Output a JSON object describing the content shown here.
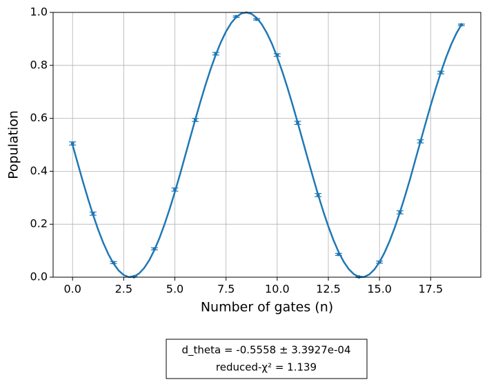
{
  "chart_data": {
    "type": "scatter",
    "xlabel": "Number of gates (n)",
    "ylabel": "Population",
    "annotations": [
      "d_theta =  -0.5558 ±  3.3927e-04",
      "reduced-χ² =  1.139"
    ],
    "xlim": [
      -0.95,
      19.95
    ],
    "ylim": [
      0,
      1
    ],
    "xticks": [
      {
        "value": 0,
        "label": "0.0"
      },
      2.5,
      {
        "value": 5,
        "label": "5.0"
      },
      7.5,
      {
        "value": 10,
        "label": "10.0"
      },
      12.5,
      {
        "value": 15,
        "label": "15.0"
      },
      17.5
    ],
    "yticks": [
      {
        "value": 0,
        "label": "0.0"
      },
      0.2,
      0.4,
      0.6,
      0.8,
      {
        "value": 1,
        "label": "1.0"
      }
    ],
    "grid": true,
    "series": [
      {
        "type": "errorbar",
        "color": "#1f77b4",
        "x": [
          0,
          1,
          2,
          3,
          4,
          5,
          6,
          7,
          8,
          9,
          10,
          11,
          12,
          13,
          14,
          15,
          16,
          17,
          18,
          19
        ],
        "values": [
          0.505,
          0.24,
          0.055,
          0.002,
          0.107,
          0.331,
          0.594,
          0.844,
          0.984,
          0.974,
          0.839,
          0.583,
          0.31,
          0.086,
          0.001,
          0.057,
          0.245,
          0.513,
          0.773,
          0.953
        ],
        "errors": [
          0.006,
          0.006,
          0.004,
          0.002,
          0.004,
          0.006,
          0.006,
          0.005,
          0.003,
          0.003,
          0.005,
          0.006,
          0.006,
          0.004,
          0.002,
          0.004,
          0.006,
          0.006,
          0.005,
          0.003
        ]
      },
      {
        "type": "line",
        "color": "#1f77b4",
        "x": [
          0,
          0.25,
          0.5,
          0.75,
          1,
          1.25,
          1.5,
          1.75,
          2,
          2.25,
          2.5,
          2.75,
          3,
          3.25,
          3.5,
          3.75,
          4,
          4.25,
          4.5,
          4.75,
          5,
          5.25,
          5.5,
          5.75,
          6,
          6.25,
          6.5,
          6.75,
          7,
          7.25,
          7.5,
          7.75,
          8,
          8.25,
          8.5,
          8.75,
          9,
          9.25,
          9.5,
          9.75,
          10,
          10.25,
          10.5,
          10.75,
          11,
          11.25,
          11.5,
          11.75,
          12,
          12.25,
          12.5,
          12.75,
          13,
          13.25,
          13.5,
          13.75,
          14,
          14.25,
          14.5,
          14.75,
          15,
          15.25,
          15.5,
          15.75,
          16,
          16.25,
          16.5,
          16.75,
          17,
          17.25,
          17.5,
          17.75,
          18,
          18.25,
          18.5,
          18.75,
          19
        ],
        "values": [
          0.5,
          0.4308,
          0.3628,
          0.2976,
          0.2361,
          0.1799,
          0.1298,
          0.0868,
          0.0518,
          0.0253,
          0.0082,
          0.0004,
          0.0023,
          0.0138,
          0.0346,
          0.0644,
          0.1026,
          0.1484,
          0.2009,
          0.2591,
          0.3219,
          0.3881,
          0.4577,
          0.5271,
          0.596,
          0.663,
          0.7269,
          0.7865,
          0.8404,
          0.8879,
          0.9279,
          0.9597,
          0.9824,
          0.996,
          1.0,
          0.9943,
          0.9791,
          0.9548,
          0.9216,
          0.8803,
          0.8316,
          0.7766,
          0.7163,
          0.6517,
          0.5843,
          0.5152,
          0.4459,
          0.3775,
          0.3116,
          0.2492,
          0.1918,
          0.1402,
          0.0955,
          0.0586,
          0.0303,
          0.0111,
          0.0014,
          0.0011,
          0.0104,
          0.0291,
          0.057,
          0.0934,
          0.1376,
          0.1886,
          0.2456,
          0.3073,
          0.3725,
          0.4426,
          0.5119,
          0.581,
          0.6486,
          0.7133,
          0.7738,
          0.8292,
          0.8782,
          0.9198,
          0.9533
        ]
      }
    ]
  }
}
